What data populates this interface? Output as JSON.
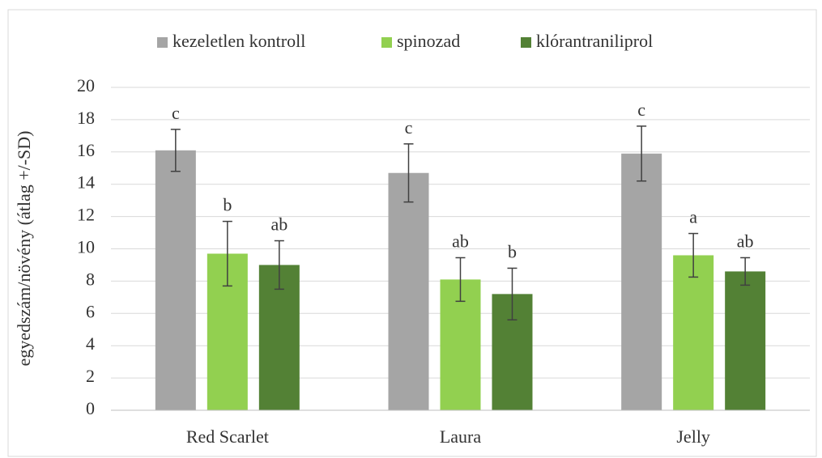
{
  "chart_data": {
    "type": "bar",
    "ylabel": "egyedszám/növény (átlag +/-SD)",
    "categories": [
      "Red Scarlet",
      "Laura",
      "Jelly"
    ],
    "series": [
      {
        "name": "kezeletlen kontroll",
        "color": "#a5a5a5",
        "values": [
          16.1,
          14.7,
          15.9
        ],
        "errors": [
          1.3,
          1.8,
          1.7
        ],
        "letters": [
          "c",
          "c",
          "c"
        ]
      },
      {
        "name": "spinozad",
        "color": "#92d050",
        "values": [
          9.7,
          8.1,
          9.6
        ],
        "errors": [
          2.0,
          1.35,
          1.35
        ],
        "letters": [
          "b",
          "ab",
          "a"
        ]
      },
      {
        "name": "klórantraniliprol",
        "color": "#538135",
        "values": [
          9.0,
          7.2,
          8.6
        ],
        "errors": [
          1.5,
          1.6,
          0.85
        ],
        "letters": [
          "ab",
          "b",
          "ab"
        ]
      }
    ],
    "ylim": [
      0,
      20
    ],
    "yticks": [
      0,
      2,
      4,
      6,
      8,
      10,
      12,
      14,
      16,
      18,
      20
    ],
    "grid": true,
    "legend": "top"
  }
}
